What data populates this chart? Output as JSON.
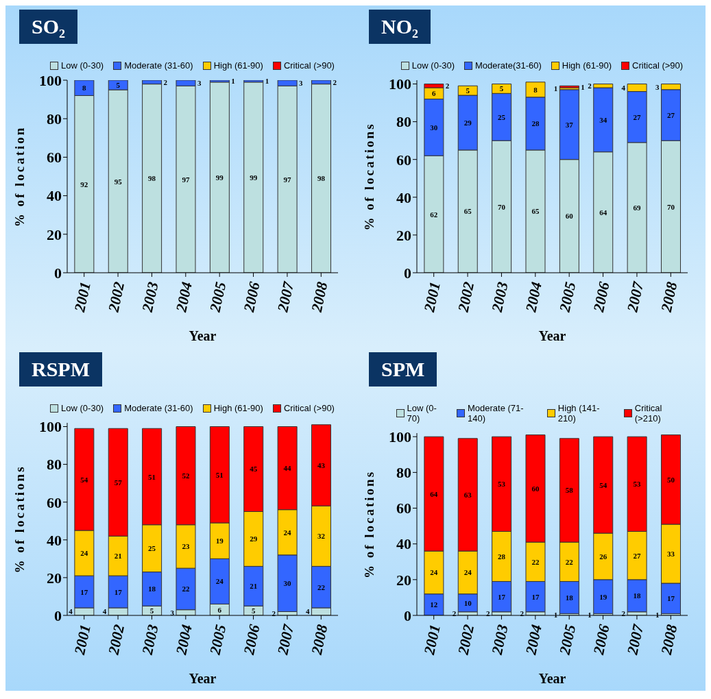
{
  "chart_data": [
    {
      "type": "bar",
      "title": "SO₂",
      "xlabel": "Year",
      "ylabel": "% of location",
      "stacked": true,
      "data_labels": true,
      "legend": "top",
      "grid": false,
      "categories": [
        "2001",
        "2002",
        "2003",
        "2004",
        "2005",
        "2006",
        "2007",
        "2008"
      ],
      "ylim": [
        0,
        100
      ],
      "yticks": [
        0,
        20,
        40,
        60,
        80,
        100
      ],
      "series": [
        {
          "name": "Low (0-30)",
          "color": "#bde0e0",
          "values": [
            92,
            95,
            98,
            97,
            99,
            99,
            97,
            98
          ]
        },
        {
          "name": "Moderate (31-60)",
          "color": "#3366ff",
          "values": [
            8,
            5,
            2,
            3,
            1,
            1,
            3,
            2
          ]
        },
        {
          "name": "High (61-90)",
          "color": "#ffcc00",
          "values": [
            null,
            null,
            null,
            null,
            null,
            null,
            null,
            null
          ]
        },
        {
          "name": "Critical (>90)",
          "color": "#ff0000",
          "values": [
            null,
            null,
            null,
            null,
            null,
            null,
            null,
            null
          ]
        }
      ]
    },
    {
      "type": "bar",
      "title": "NO₂",
      "xlabel": "Year",
      "ylabel": "% of locations",
      "stacked": true,
      "data_labels": true,
      "legend": "top",
      "grid": false,
      "categories": [
        "2001",
        "2002",
        "2003",
        "2004",
        "2005",
        "2006",
        "2007",
        "2008"
      ],
      "ylim": [
        0,
        102
      ],
      "yticks": [
        0,
        20,
        40,
        60,
        80,
        100
      ],
      "series": [
        {
          "name": "Low (0-30)",
          "color": "#bde0e0",
          "values": [
            62,
            65,
            70,
            65,
            60,
            64,
            69,
            70
          ]
        },
        {
          "name": "Moderate(31-60)",
          "color": "#3366ff",
          "values": [
            30,
            29,
            25,
            28,
            37,
            34,
            27,
            27
          ]
        },
        {
          "name": "High (61-90)",
          "color": "#ffcc00",
          "values": [
            6,
            5,
            5,
            8,
            1,
            2,
            4,
            3
          ]
        },
        {
          "name": "Critical (>90)",
          "color": "#ff0000",
          "values": [
            2,
            null,
            null,
            null,
            1,
            null,
            null,
            null
          ]
        }
      ]
    },
    {
      "type": "bar",
      "title": "RSPM",
      "xlabel": "Year",
      "ylabel": "% of locations",
      "stacked": true,
      "data_labels": true,
      "legend": "top",
      "grid": false,
      "categories": [
        "2001",
        "2002",
        "2003",
        "2004",
        "2005",
        "2006",
        "2007",
        "2008"
      ],
      "ylim": [
        0,
        102
      ],
      "yticks": [
        0,
        20,
        40,
        60,
        80,
        100
      ],
      "series": [
        {
          "name": "Low (0-30)",
          "color": "#bde0e0",
          "values": [
            4,
            4,
            5,
            3,
            6,
            5,
            2,
            4
          ]
        },
        {
          "name": "Moderate (31-60)",
          "color": "#3366ff",
          "values": [
            17,
            17,
            18,
            22,
            24,
            21,
            30,
            22
          ]
        },
        {
          "name": "High (61-90)",
          "color": "#ffcc00",
          "values": [
            24,
            21,
            25,
            23,
            19,
            29,
            24,
            32
          ]
        },
        {
          "name": "Critical (>90)",
          "color": "#ff0000",
          "values": [
            54,
            57,
            51,
            52,
            51,
            45,
            44,
            43
          ]
        }
      ]
    },
    {
      "type": "bar",
      "title": "SPM",
      "xlabel": "Year",
      "ylabel": "% of locations",
      "stacked": true,
      "data_labels": true,
      "legend": "top",
      "grid": false,
      "categories": [
        "2001",
        "2002",
        "2003",
        "2004",
        "2005",
        "2006",
        "2007",
        "2008"
      ],
      "ylim": [
        0,
        102
      ],
      "yticks": [
        0,
        20,
        40,
        60,
        80,
        100
      ],
      "series": [
        {
          "name": "Low (0-70)",
          "color": "#bde0e0",
          "values": [
            null,
            2,
            2,
            2,
            1,
            1,
            2,
            1
          ]
        },
        {
          "name": "Moderate (71-140)",
          "color": "#3366ff",
          "values": [
            12,
            10,
            17,
            17,
            18,
            19,
            18,
            17
          ]
        },
        {
          "name": "High (141-210)",
          "color": "#ffcc00",
          "values": [
            24,
            24,
            28,
            22,
            22,
            26,
            27,
            33
          ]
        },
        {
          "name": "Critical (>210)",
          "color": "#ff0000",
          "values": [
            64,
            63,
            53,
            60,
            58,
            54,
            53,
            50
          ]
        }
      ]
    }
  ]
}
